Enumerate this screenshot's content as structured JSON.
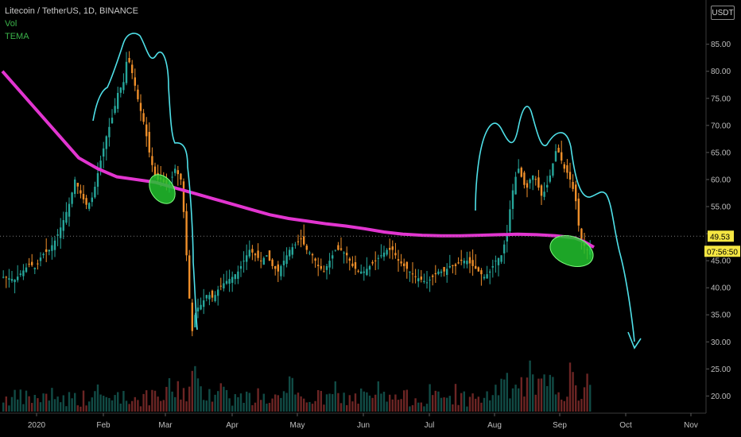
{
  "legend": {
    "symbol": "Litecoin / TetherUS, 1D, BINANCE",
    "vol": "Vol",
    "tema": "TEMA"
  },
  "currency_button": "USDT",
  "last_price_label": "49.53",
  "countdown_label": "07:56:50",
  "colors": {
    "up": "#26a69a",
    "down": "#ef8f2a",
    "tema": "#e235d0",
    "annotation": "#4fe0e8",
    "ellipse": "#22c22e",
    "last_price_bg": "#f5e642",
    "countdown_bg": "#f5e642"
  },
  "chart_data": {
    "type": "candlestick",
    "title": "Litecoin / TetherUS, 1D, BINANCE",
    "ylim": [
      18,
      92
    ],
    "y_ticks": [
      "20.00",
      "25.00",
      "30.00",
      "35.00",
      "40.00",
      "45.00",
      "50.00",
      "55.00",
      "60.00",
      "65.00",
      "70.00",
      "75.00",
      "80.00",
      "85.00"
    ],
    "x_ticks": [
      "2020",
      "Feb",
      "Mar",
      "Apr",
      "May",
      "Jun",
      "Jul",
      "Aug",
      "Sep",
      "Oct",
      "Nov"
    ],
    "last_price": 49.53,
    "close_path": [
      [
        0,
        42
      ],
      [
        12,
        41.5
      ],
      [
        20,
        43
      ],
      [
        28,
        44.5
      ],
      [
        34,
        43.5
      ],
      [
        40,
        46
      ],
      [
        48,
        47
      ],
      [
        55,
        49
      ],
      [
        62,
        52
      ],
      [
        70,
        56
      ],
      [
        75,
        60
      ],
      [
        82,
        57
      ],
      [
        88,
        55
      ],
      [
        94,
        57
      ],
      [
        100,
        62
      ],
      [
        108,
        68
      ],
      [
        115,
        72
      ],
      [
        120,
        76
      ],
      [
        126,
        78
      ],
      [
        130,
        83
      ],
      [
        136,
        79
      ],
      [
        142,
        74
      ],
      [
        148,
        70
      ],
      [
        154,
        64
      ],
      [
        160,
        60
      ],
      [
        166,
        60
      ],
      [
        170,
        59
      ],
      [
        176,
        60
      ],
      [
        180,
        62
      ],
      [
        186,
        60
      ],
      [
        190,
        52
      ],
      [
        194,
        40
      ],
      [
        198,
        32
      ],
      [
        202,
        36
      ],
      [
        208,
        37
      ],
      [
        214,
        39
      ],
      [
        220,
        38
      ],
      [
        226,
        40
      ],
      [
        232,
        41
      ],
      [
        240,
        42
      ],
      [
        246,
        43
      ],
      [
        252,
        45
      ],
      [
        258,
        47
      ],
      [
        264,
        46
      ],
      [
        270,
        45
      ],
      [
        276,
        46
      ],
      [
        282,
        44
      ],
      [
        288,
        43
      ],
      [
        294,
        45
      ],
      [
        300,
        47
      ],
      [
        306,
        48
      ],
      [
        312,
        49
      ],
      [
        318,
        47
      ],
      [
        324,
        46
      ],
      [
        330,
        44
      ],
      [
        336,
        43
      ],
      [
        342,
        45
      ],
      [
        348,
        47
      ],
      [
        354,
        47
      ],
      [
        360,
        46
      ],
      [
        366,
        44
      ],
      [
        372,
        43
      ],
      [
        378,
        43
      ],
      [
        384,
        44
      ],
      [
        390,
        45
      ],
      [
        396,
        46
      ],
      [
        402,
        47
      ],
      [
        408,
        47
      ],
      [
        414,
        45
      ],
      [
        420,
        44
      ],
      [
        426,
        43
      ],
      [
        432,
        42
      ],
      [
        438,
        41.5
      ],
      [
        444,
        41
      ],
      [
        450,
        42
      ],
      [
        456,
        43
      ],
      [
        462,
        43
      ],
      [
        468,
        44
      ],
      [
        474,
        44
      ],
      [
        480,
        45
      ],
      [
        486,
        45
      ],
      [
        492,
        44
      ],
      [
        498,
        43
      ],
      [
        504,
        42
      ],
      [
        510,
        43
      ],
      [
        516,
        45
      ],
      [
        522,
        46
      ],
      [
        528,
        50
      ],
      [
        532,
        56
      ],
      [
        536,
        60
      ],
      [
        540,
        62
      ],
      [
        544,
        60
      ],
      [
        548,
        58
      ],
      [
        552,
        60
      ],
      [
        556,
        61
      ],
      [
        560,
        59
      ],
      [
        564,
        57
      ],
      [
        568,
        58
      ],
      [
        572,
        60
      ],
      [
        576,
        63
      ],
      [
        580,
        66
      ],
      [
        584,
        64
      ],
      [
        588,
        62
      ],
      [
        592,
        61
      ],
      [
        596,
        59
      ],
      [
        600,
        56
      ],
      [
        604,
        50
      ],
      [
        608,
        48
      ],
      [
        612,
        47
      ],
      [
        616,
        48
      ],
      [
        620,
        49.5
      ]
    ],
    "tema_path": [
      [
        0,
        80
      ],
      [
        20,
        76
      ],
      [
        40,
        72
      ],
      [
        60,
        68
      ],
      [
        80,
        64
      ],
      [
        100,
        62
      ],
      [
        120,
        60.5
      ],
      [
        140,
        60
      ],
      [
        160,
        59.5
      ],
      [
        180,
        58.5
      ],
      [
        200,
        57.5
      ],
      [
        220,
        56.5
      ],
      [
        240,
        55.5
      ],
      [
        260,
        54.5
      ],
      [
        280,
        53.5
      ],
      [
        300,
        52.8
      ],
      [
        320,
        52.3
      ],
      [
        340,
        51.8
      ],
      [
        360,
        51.4
      ],
      [
        380,
        50.9
      ],
      [
        400,
        50.3
      ],
      [
        420,
        49.9
      ],
      [
        440,
        49.7
      ],
      [
        460,
        49.6
      ],
      [
        480,
        49.6
      ],
      [
        500,
        49.7
      ],
      [
        520,
        49.8
      ],
      [
        540,
        49.9
      ],
      [
        560,
        49.8
      ],
      [
        580,
        49.6
      ],
      [
        600,
        49.2
      ],
      [
        610,
        48.5
      ],
      [
        620,
        47.5
      ]
    ]
  }
}
